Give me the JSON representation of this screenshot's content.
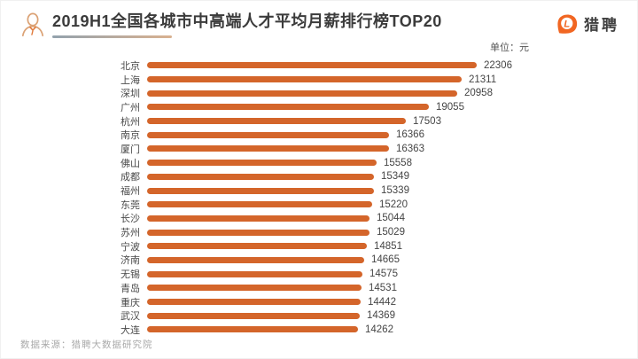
{
  "header": {
    "title": "2019H1全国各城市中高端人才平均月薪排行榜TOP20",
    "unit_label": "单位：元",
    "logo_text": "猎聘",
    "logo_letter": "L"
  },
  "footer": {
    "source": "数据来源：猎聘大数据研究院"
  },
  "colors": {
    "bar": "#d4652a",
    "logo": "#f16622",
    "underline_start": "#93a2ad",
    "underline_end": "#d9b190"
  },
  "chart_data": {
    "type": "bar",
    "orientation": "horizontal",
    "title": "2019H1全国各城市中高端人才平均月薪排行榜TOP20",
    "unit": "元",
    "categories": [
      "北京",
      "上海",
      "深圳",
      "广州",
      "杭州",
      "南京",
      "厦门",
      "佛山",
      "成都",
      "福州",
      "东莞",
      "长沙",
      "苏州",
      "宁波",
      "济南",
      "无锡",
      "青岛",
      "重庆",
      "武汉",
      "大连"
    ],
    "values": [
      22306,
      21311,
      20958,
      19055,
      17503,
      16366,
      16363,
      15558,
      15349,
      15339,
      15220,
      15044,
      15029,
      14851,
      14665,
      14575,
      14531,
      14442,
      14369,
      14262
    ],
    "xlim": [
      0,
      22306
    ],
    "value_labels_shown": true,
    "grid": false,
    "legend": false
  }
}
